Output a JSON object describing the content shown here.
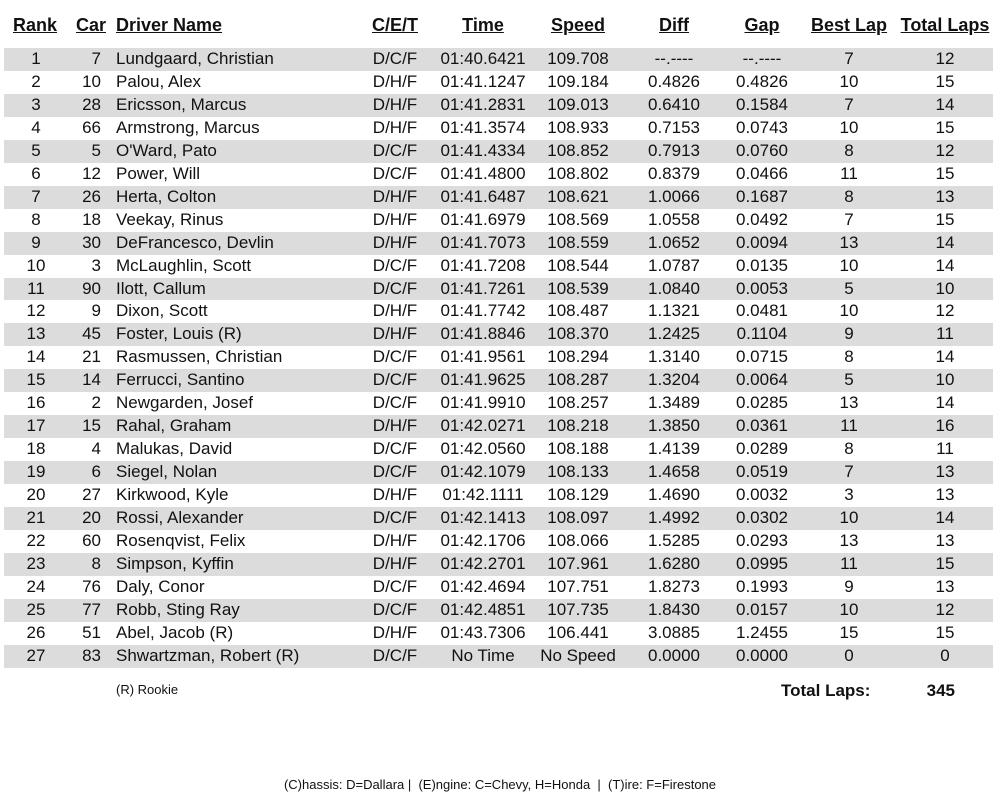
{
  "headers": {
    "rank": "Rank",
    "car": "Car",
    "driver": "Driver Name",
    "cet": "C/E/T",
    "time": "Time",
    "speed": "Speed",
    "diff": "Diff",
    "gap": "Gap",
    "best_lap": "Best Lap",
    "total_laps": "Total Laps"
  },
  "rows": [
    [
      "1",
      "7",
      "Lundgaard, Christian",
      "D/C/F",
      "01:40.6421",
      "109.708",
      "--.----",
      "--.----",
      "7",
      "12"
    ],
    [
      "2",
      "10",
      "Palou, Alex",
      "D/H/F",
      "01:41.1247",
      "109.184",
      "0.4826",
      "0.4826",
      "10",
      "15"
    ],
    [
      "3",
      "28",
      "Ericsson, Marcus",
      "D/H/F",
      "01:41.2831",
      "109.013",
      "0.6410",
      "0.1584",
      "7",
      "14"
    ],
    [
      "4",
      "66",
      "Armstrong, Marcus",
      "D/H/F",
      "01:41.3574",
      "108.933",
      "0.7153",
      "0.0743",
      "10",
      "15"
    ],
    [
      "5",
      "5",
      "O'Ward, Pato",
      "D/C/F",
      "01:41.4334",
      "108.852",
      "0.7913",
      "0.0760",
      "8",
      "12"
    ],
    [
      "6",
      "12",
      "Power, Will",
      "D/C/F",
      "01:41.4800",
      "108.802",
      "0.8379",
      "0.0466",
      "11",
      "15"
    ],
    [
      "7",
      "26",
      "Herta, Colton",
      "D/H/F",
      "01:41.6487",
      "108.621",
      "1.0066",
      "0.1687",
      "8",
      "13"
    ],
    [
      "8",
      "18",
      "Veekay, Rinus",
      "D/H/F",
      "01:41.6979",
      "108.569",
      "1.0558",
      "0.0492",
      "7",
      "15"
    ],
    [
      "9",
      "30",
      "DeFrancesco, Devlin",
      "D/H/F",
      "01:41.7073",
      "108.559",
      "1.0652",
      "0.0094",
      "13",
      "14"
    ],
    [
      "10",
      "3",
      "McLaughlin, Scott",
      "D/C/F",
      "01:41.7208",
      "108.544",
      "1.0787",
      "0.0135",
      "10",
      "14"
    ],
    [
      "11",
      "90",
      "Ilott, Callum",
      "D/C/F",
      "01:41.7261",
      "108.539",
      "1.0840",
      "0.0053",
      "5",
      "10"
    ],
    [
      "12",
      "9",
      "Dixon, Scott",
      "D/H/F",
      "01:41.7742",
      "108.487",
      "1.1321",
      "0.0481",
      "10",
      "12"
    ],
    [
      "13",
      "45",
      "Foster, Louis (R)",
      "D/H/F",
      "01:41.8846",
      "108.370",
      "1.2425",
      "0.1104",
      "9",
      "11"
    ],
    [
      "14",
      "21",
      "Rasmussen, Christian",
      "D/C/F",
      "01:41.9561",
      "108.294",
      "1.3140",
      "0.0715",
      "8",
      "14"
    ],
    [
      "15",
      "14",
      "Ferrucci, Santino",
      "D/C/F",
      "01:41.9625",
      "108.287",
      "1.3204",
      "0.0064",
      "5",
      "10"
    ],
    [
      "16",
      "2",
      "Newgarden, Josef",
      "D/C/F",
      "01:41.9910",
      "108.257",
      "1.3489",
      "0.0285",
      "13",
      "14"
    ],
    [
      "17",
      "15",
      "Rahal, Graham",
      "D/H/F",
      "01:42.0271",
      "108.218",
      "1.3850",
      "0.0361",
      "11",
      "16"
    ],
    [
      "18",
      "4",
      "Malukas, David",
      "D/C/F",
      "01:42.0560",
      "108.188",
      "1.4139",
      "0.0289",
      "8",
      "11"
    ],
    [
      "19",
      "6",
      "Siegel, Nolan",
      "D/C/F",
      "01:42.1079",
      "108.133",
      "1.4658",
      "0.0519",
      "7",
      "13"
    ],
    [
      "20",
      "27",
      "Kirkwood, Kyle",
      "D/H/F",
      "01:42.1111",
      "108.129",
      "1.4690",
      "0.0032",
      "3",
      "13"
    ],
    [
      "21",
      "20",
      "Rossi, Alexander",
      "D/C/F",
      "01:42.1413",
      "108.097",
      "1.4992",
      "0.0302",
      "10",
      "14"
    ],
    [
      "22",
      "60",
      "Rosenqvist, Felix",
      "D/H/F",
      "01:42.1706",
      "108.066",
      "1.5285",
      "0.0293",
      "13",
      "13"
    ],
    [
      "23",
      "8",
      "Simpson, Kyffin",
      "D/H/F",
      "01:42.2701",
      "107.961",
      "1.6280",
      "0.0995",
      "11",
      "15"
    ],
    [
      "24",
      "76",
      "Daly, Conor",
      "D/C/F",
      "01:42.4694",
      "107.751",
      "1.8273",
      "0.1993",
      "9",
      "13"
    ],
    [
      "25",
      "77",
      "Robb, Sting Ray",
      "D/C/F",
      "01:42.4851",
      "107.735",
      "1.8430",
      "0.0157",
      "10",
      "12"
    ],
    [
      "26",
      "51",
      "Abel, Jacob (R)",
      "D/H/F",
      "01:43.7306",
      "106.441",
      "3.0885",
      "1.2455",
      "15",
      "15"
    ],
    [
      "27",
      "83",
      "Shwartzman, Robert (R)",
      "D/C/F",
      "No Time",
      "No Speed",
      "0.0000",
      "0.0000",
      "0",
      "0"
    ]
  ],
  "footer": {
    "rookie_note": "(R) Rookie",
    "total_laps_label": "Total Laps:",
    "total_laps_value": "345",
    "legend": "(C)hassis: D=Dallara |  (E)ngine: C=Chevy, H=Honda  |  (T)ire: F=Firestone"
  },
  "colors": {
    "row_shade": "#dcdcdc"
  }
}
